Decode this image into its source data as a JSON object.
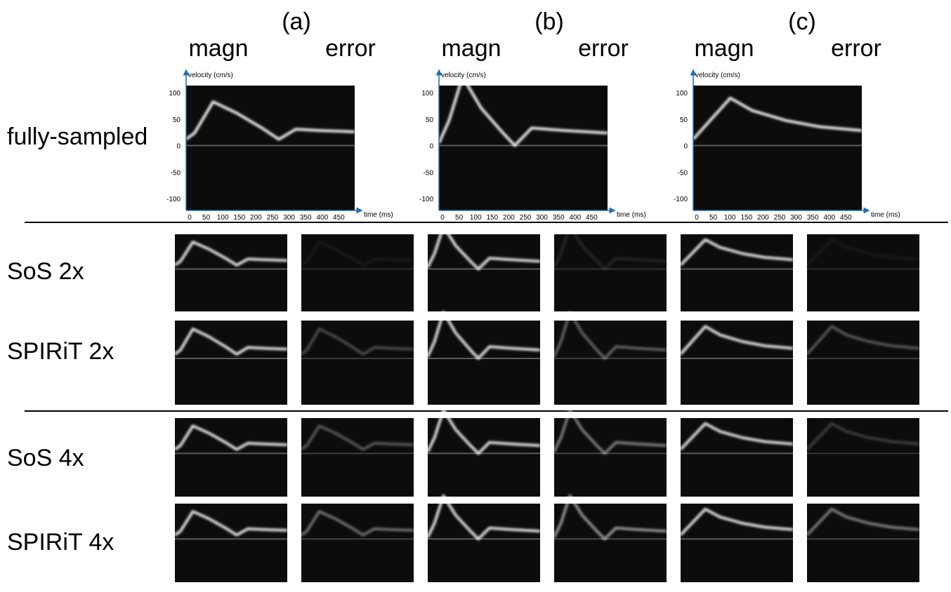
{
  "header": {
    "groups": [
      "(a)",
      "(b)",
      "(c)"
    ],
    "columns": [
      "magn",
      "error"
    ]
  },
  "rows": [
    "fully-sampled",
    "SoS 2x",
    "SPIRiT 2x",
    "SoS 4x",
    "SPIRiT 4x"
  ],
  "axes": {
    "y_label": "velocity (cm/s)",
    "x_label": "time (ms)",
    "yticks": [
      100,
      50,
      0,
      -50,
      -100
    ],
    "xticks": [
      0,
      50,
      100,
      150,
      200,
      250,
      300,
      350,
      400,
      450
    ]
  }
}
